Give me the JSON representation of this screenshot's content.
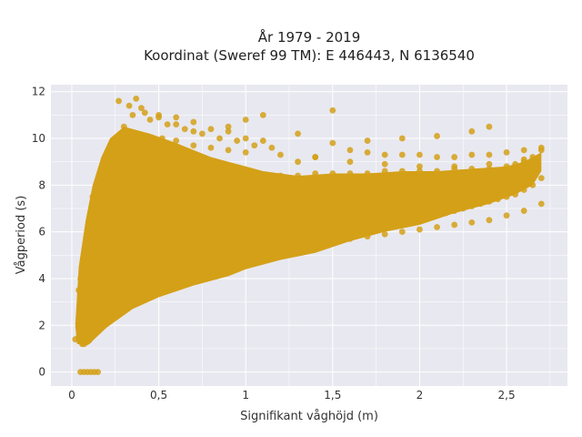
{
  "chart_data": {
    "type": "scatter",
    "title_lines": [
      "År 1979 - 2019",
      "Koordinat (Sweref 99 TM): E 446443, N 6136540"
    ],
    "xlabel": "Signifikant våghöjd (m)",
    "ylabel": "Vågperiod (s)",
    "xlim": [
      -0.12,
      2.85
    ],
    "ylim": [
      -0.6,
      12.3
    ],
    "x_ticks": [
      0,
      0.5,
      1,
      1.5,
      2,
      2.5
    ],
    "x_tick_labels": [
      "0",
      "0,5",
      "1",
      "1,5",
      "2",
      "2,5"
    ],
    "y_ticks": [
      0,
      2,
      4,
      6,
      8,
      10,
      12
    ],
    "y_tick_labels": [
      "0",
      "2",
      "4",
      "6",
      "8",
      "10",
      "12"
    ],
    "grid": true,
    "marker_color": "#D4A017",
    "plot_background": "#E8E8F0",
    "series": [
      {
        "x": [
          0.02,
          0.04,
          0.05,
          0.06,
          0.07,
          0.08,
          0.09,
          0.1,
          0.05,
          0.06,
          0.07,
          0.08,
          0.09,
          0.1,
          0.11,
          0.04,
          0.05,
          0.07,
          0.09,
          0.11,
          0.12,
          0.13,
          0.15,
          0.17,
          0.2,
          0.22,
          0.25,
          0.28,
          0.3,
          0.33,
          0.35,
          0.38,
          0.4,
          0.43,
          0.45,
          0.48,
          0.5,
          0.55,
          0.6,
          0.65,
          0.7,
          0.75,
          0.8,
          0.85,
          0.9,
          0.95,
          1.0,
          1.05,
          1.1,
          1.2,
          1.3,
          1.4,
          1.5,
          1.6,
          1.7,
          1.8,
          1.9,
          2.0,
          2.1,
          2.2,
          2.3,
          2.4,
          2.5,
          2.55,
          2.6,
          2.65,
          2.7,
          0.08,
          0.1,
          0.12,
          0.15,
          0.18,
          0.2,
          0.25,
          0.3,
          0.35,
          0.4,
          0.45,
          0.5,
          0.6,
          0.7,
          0.8,
          0.9,
          1.0,
          1.1,
          1.2,
          1.3,
          1.4,
          1.5,
          1.6,
          1.7,
          1.8,
          1.9,
          2.0,
          2.1,
          2.2,
          2.3,
          2.4,
          2.5,
          2.6,
          2.7,
          0.1,
          0.15,
          0.2,
          0.25,
          0.3,
          0.35,
          0.4,
          0.45,
          0.5,
          0.55,
          0.6,
          0.65,
          0.7,
          0.75,
          0.8,
          0.85,
          0.9,
          0.95,
          1.0,
          1.1,
          1.2,
          0.1,
          0.15,
          0.2,
          0.25,
          0.3,
          0.35,
          0.4,
          0.45,
          0.5,
          0.6,
          0.7,
          0.8,
          0.9,
          1.0,
          1.1,
          1.2,
          1.3,
          1.4,
          1.5,
          1.6,
          1.7,
          1.8,
          1.9,
          2.0,
          2.1,
          2.2,
          2.3,
          2.4,
          2.5,
          0.12,
          0.2,
          0.28,
          0.36,
          0.44,
          0.52,
          0.6,
          0.7,
          0.8,
          0.9,
          1.0,
          1.2,
          1.4,
          1.6,
          1.8,
          2.0,
          2.2,
          2.4,
          2.6,
          0.05,
          0.07,
          0.09,
          0.11,
          0.13,
          0.15,
          0.06,
          0.08,
          0.1,
          0.12,
          0.14,
          0.16,
          0.18,
          0.22,
          0.26,
          0.3,
          0.34,
          0.38,
          0.42,
          0.46,
          0.5,
          0.54,
          0.58,
          0.62,
          0.66,
          0.7,
          0.74,
          0.78,
          0.82,
          0.86,
          0.9,
          0.94,
          0.98,
          1.02,
          1.06,
          1.1,
          1.15,
          1.2,
          1.25,
          1.3,
          1.35,
          1.4,
          1.45,
          1.5,
          1.55,
          1.6,
          1.65,
          1.7,
          1.75,
          1.8,
          1.85,
          1.9,
          1.95,
          2.0,
          2.05,
          2.1,
          2.15,
          2.2,
          2.25,
          2.3,
          2.35,
          2.4,
          2.45,
          2.5,
          2.55,
          2.6,
          2.65,
          2.7,
          0.3,
          0.35,
          0.4,
          0.45,
          0.5,
          0.55,
          0.6,
          0.65,
          0.7,
          0.75,
          0.8,
          0.85,
          0.9,
          0.95,
          1.0,
          1.05,
          1.1,
          1.15,
          0.2,
          0.25,
          0.3,
          0.35,
          0.4,
          0.45,
          0.5,
          0.55,
          0.6,
          0.65,
          0.7,
          0.75,
          0.8,
          0.85,
          0.9,
          0.95,
          1.0,
          1.1,
          1.2,
          1.3,
          1.4,
          1.5,
          1.6,
          1.7,
          1.8,
          1.9,
          2.0,
          2.1,
          2.2,
          2.3,
          2.4,
          2.5,
          2.6,
          1.3,
          1.4,
          1.5,
          1.6,
          1.7,
          1.8,
          1.9,
          2.0,
          2.1,
          2.2,
          2.3,
          2.4,
          2.5,
          2.6,
          2.7,
          0.27,
          0.33,
          0.37,
          0.42,
          0.5,
          0.6,
          0.7,
          0.9,
          1.0,
          1.1,
          1.3,
          1.5,
          1.7,
          1.9,
          2.1,
          2.3,
          2.4
        ],
        "y": [
          1.4,
          1.5,
          1.3,
          1.2,
          1.2,
          1.25,
          1.3,
          1.35,
          1.8,
          1.9,
          2.1,
          2.2,
          2.3,
          2.5,
          2.7,
          3.5,
          4.0,
          4.5,
          5.0,
          5.5,
          5.8,
          6.0,
          6.3,
          6.5,
          6.6,
          6.8,
          6.9,
          7.0,
          7.2,
          7.3,
          7.4,
          7.5,
          7.6,
          7.7,
          7.8,
          7.8,
          7.9,
          8.0,
          8.0,
          8.1,
          8.1,
          8.2,
          8.2,
          8.2,
          8.3,
          8.3,
          8.3,
          8.3,
          8.4,
          8.4,
          8.4,
          8.5,
          8.5,
          8.5,
          8.5,
          8.6,
          8.6,
          8.6,
          8.6,
          8.7,
          8.7,
          8.7,
          8.8,
          8.9,
          9.0,
          9.2,
          9.5,
          1.6,
          1.7,
          1.9,
          2.1,
          2.3,
          2.5,
          2.8,
          3.0,
          3.2,
          3.4,
          3.6,
          3.8,
          4.0,
          4.2,
          4.4,
          4.6,
          4.8,
          5.0,
          5.1,
          5.3,
          5.5,
          5.6,
          5.7,
          5.8,
          5.9,
          6.0,
          6.1,
          6.2,
          6.3,
          6.4,
          6.5,
          6.7,
          6.9,
          7.2,
          3.0,
          3.5,
          4.0,
          4.3,
          4.6,
          4.8,
          5.0,
          5.2,
          5.4,
          5.6,
          5.8,
          5.9,
          6.0,
          6.1,
          6.2,
          6.3,
          6.4,
          6.5,
          6.6,
          6.8,
          7.0,
          5.0,
          5.5,
          6.0,
          6.2,
          6.4,
          6.6,
          6.8,
          7.0,
          7.1,
          7.2,
          7.3,
          7.3,
          7.4,
          7.4,
          7.5,
          7.5,
          7.6,
          7.7,
          7.8,
          7.9,
          8.0,
          8.0,
          8.1,
          8.2,
          8.3,
          8.3,
          8.4,
          8.5,
          8.6,
          7.5,
          8.5,
          9.0,
          9.5,
          9.8,
          10.0,
          9.9,
          9.7,
          9.6,
          9.5,
          9.4,
          9.3,
          9.2,
          9.0,
          8.9,
          8.8,
          8.8,
          8.9,
          9.1,
          0.0,
          0.0,
          0.0,
          0.0,
          0.0,
          0.0,
          4.5,
          5.0,
          5.5,
          5.0,
          4.5,
          4.2,
          3.9,
          3.6,
          3.4,
          3.3,
          3.3,
          3.4,
          3.5,
          3.6,
          3.7,
          3.8,
          3.9,
          4.0,
          4.1,
          4.2,
          4.3,
          4.4,
          4.5,
          4.6,
          4.7,
          4.8,
          4.9,
          5.0,
          5.1,
          5.2,
          5.3,
          5.4,
          5.5,
          5.6,
          5.6,
          5.7,
          5.8,
          5.9,
          6.0,
          6.0,
          6.1,
          6.2,
          6.3,
          6.3,
          6.4,
          6.5,
          6.5,
          6.6,
          6.7,
          6.8,
          6.8,
          6.9,
          7.0,
          7.1,
          7.2,
          7.3,
          7.4,
          7.5,
          7.6,
          7.8,
          8.0,
          8.3,
          10.5,
          11.0,
          11.3,
          10.8,
          11.0,
          10.6,
          10.9,
          10.4,
          10.7,
          10.2,
          10.4,
          10.0,
          10.3,
          9.9,
          10.0,
          9.7,
          9.9,
          9.6,
          7.8,
          8.0,
          8.3,
          8.5,
          8.7,
          8.9,
          8.8,
          8.7,
          8.6,
          8.5,
          8.4,
          8.3,
          8.2,
          8.1,
          8.0,
          8.0,
          7.9,
          7.8,
          7.8,
          7.8,
          7.9,
          7.9,
          8.0,
          8.0,
          8.1,
          8.1,
          8.2,
          8.2,
          8.3,
          8.4,
          8.4,
          8.5,
          8.6,
          9.0,
          9.2,
          11.2,
          9.5,
          9.4,
          9.3,
          9.3,
          9.3,
          9.2,
          9.2,
          9.3,
          9.3,
          9.4,
          9.5,
          9.6,
          11.6,
          11.4,
          11.7,
          11.1,
          10.9,
          10.6,
          10.3,
          10.5,
          10.8,
          11.0,
          10.2,
          9.8,
          9.9,
          10.0,
          10.1,
          10.3,
          10.5
        ]
      }
    ]
  }
}
